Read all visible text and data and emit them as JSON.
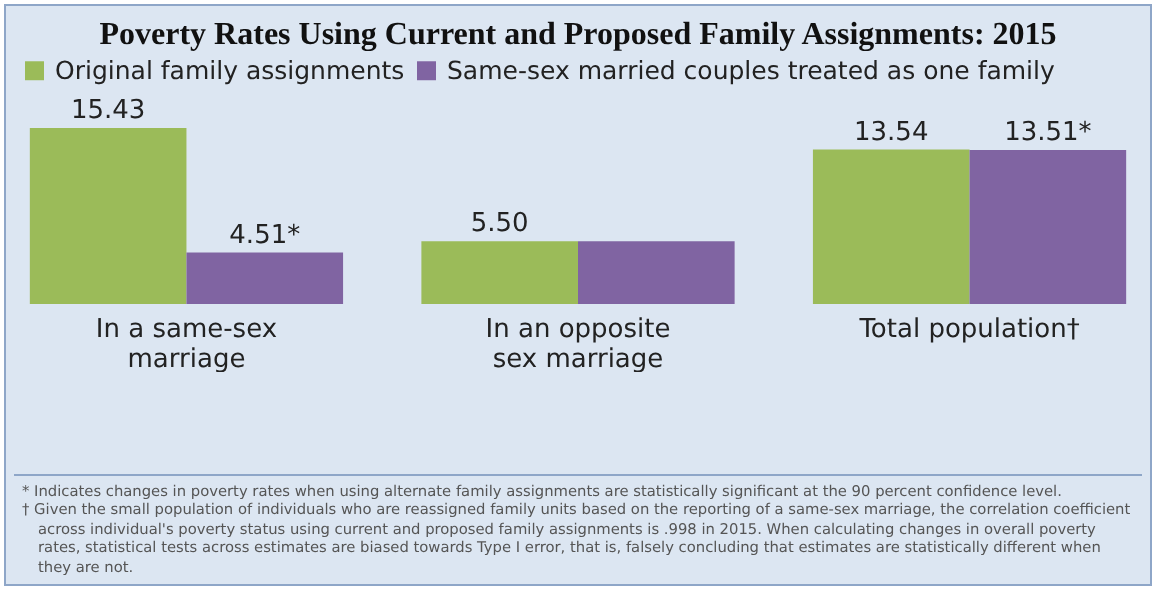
{
  "chart_data": {
    "type": "bar",
    "title": "Poverty Rates Using Current and Proposed Family Assignments: 2015",
    "categories": [
      "In a same-sex marriage",
      "In an opposite sex marriage",
      "Total population†"
    ],
    "series": [
      {
        "name": "Original family assignments",
        "color": "#9bbb59",
        "values": [
          15.43,
          5.5,
          13.54
        ],
        "value_labels": [
          "15.43",
          "5.50",
          "13.54"
        ]
      },
      {
        "name": "Same-sex married couples treated as one family",
        "color": "#8064a2",
        "values": [
          4.51,
          5.5,
          13.51
        ],
        "value_labels": [
          "4.51*",
          null,
          "13.51*"
        ]
      }
    ],
    "legend": "top",
    "annotations": [
      "* Indicates changes in poverty rates when using alternate family assignments are statistically significant at the 90 percent confidence level.",
      "† Given the small population of individuals who are reassigned family units based on the reporting of a same-sex marriage, the correlation coefficient across individual's poverty status using current and proposed family assignments is .998 in 2015. When calculating changes in overall poverty rates, statistical tests across estimates are biased towards Type I error, that is, falsely concluding that estimates are statistically different when they are not."
    ]
  }
}
